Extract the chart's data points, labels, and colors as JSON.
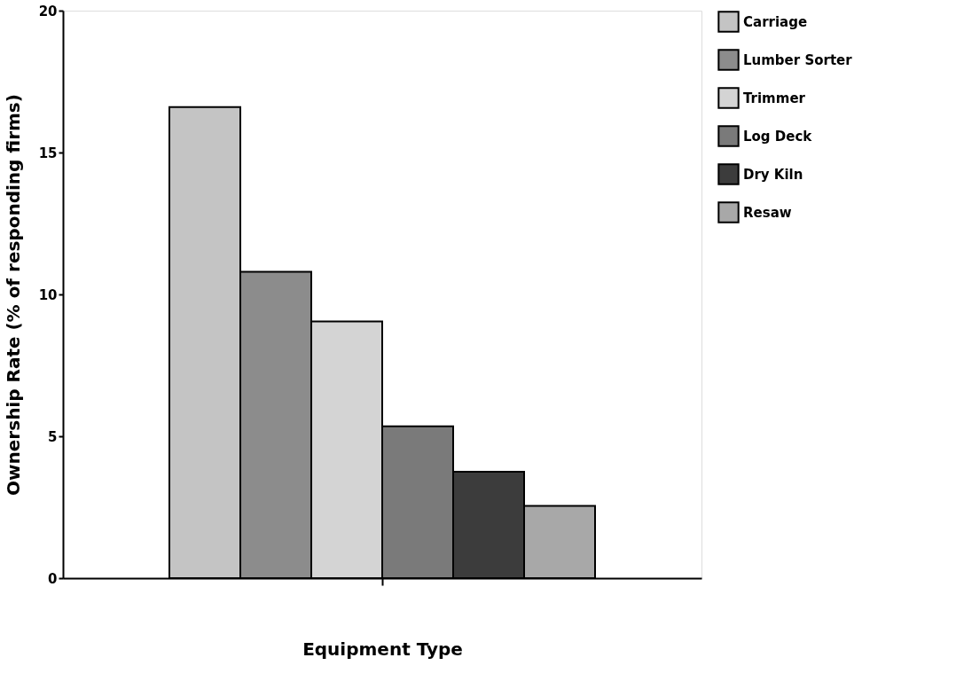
{
  "chart_data": {
    "type": "bar",
    "xlabel": "Equipment Type",
    "ylabel": "Ownership Rate (% of responding firms)",
    "categories": [
      null
    ],
    "series": [
      {
        "name": "Carriage",
        "color": "#c4c4c4",
        "values": [
          16.6
        ]
      },
      {
        "name": "Lumber Sorter",
        "color": "#8c8c8c",
        "values": [
          10.8
        ]
      },
      {
        "name": "Trimmer",
        "color": "#d4d4d4",
        "values": [
          9.05
        ]
      },
      {
        "name": "Log Deck",
        "color": "#7a7a7a",
        "values": [
          5.35
        ]
      },
      {
        "name": "Dry Kiln",
        "color": "#3c3c3c",
        "values": [
          3.75
        ]
      },
      {
        "name": "Resaw",
        "color": "#a8a8a8",
        "values": [
          2.55
        ]
      }
    ],
    "ylim": [
      0,
      20
    ],
    "yticks": [
      0,
      5,
      10,
      15,
      20
    ],
    "grid": false,
    "legend": "top right"
  }
}
